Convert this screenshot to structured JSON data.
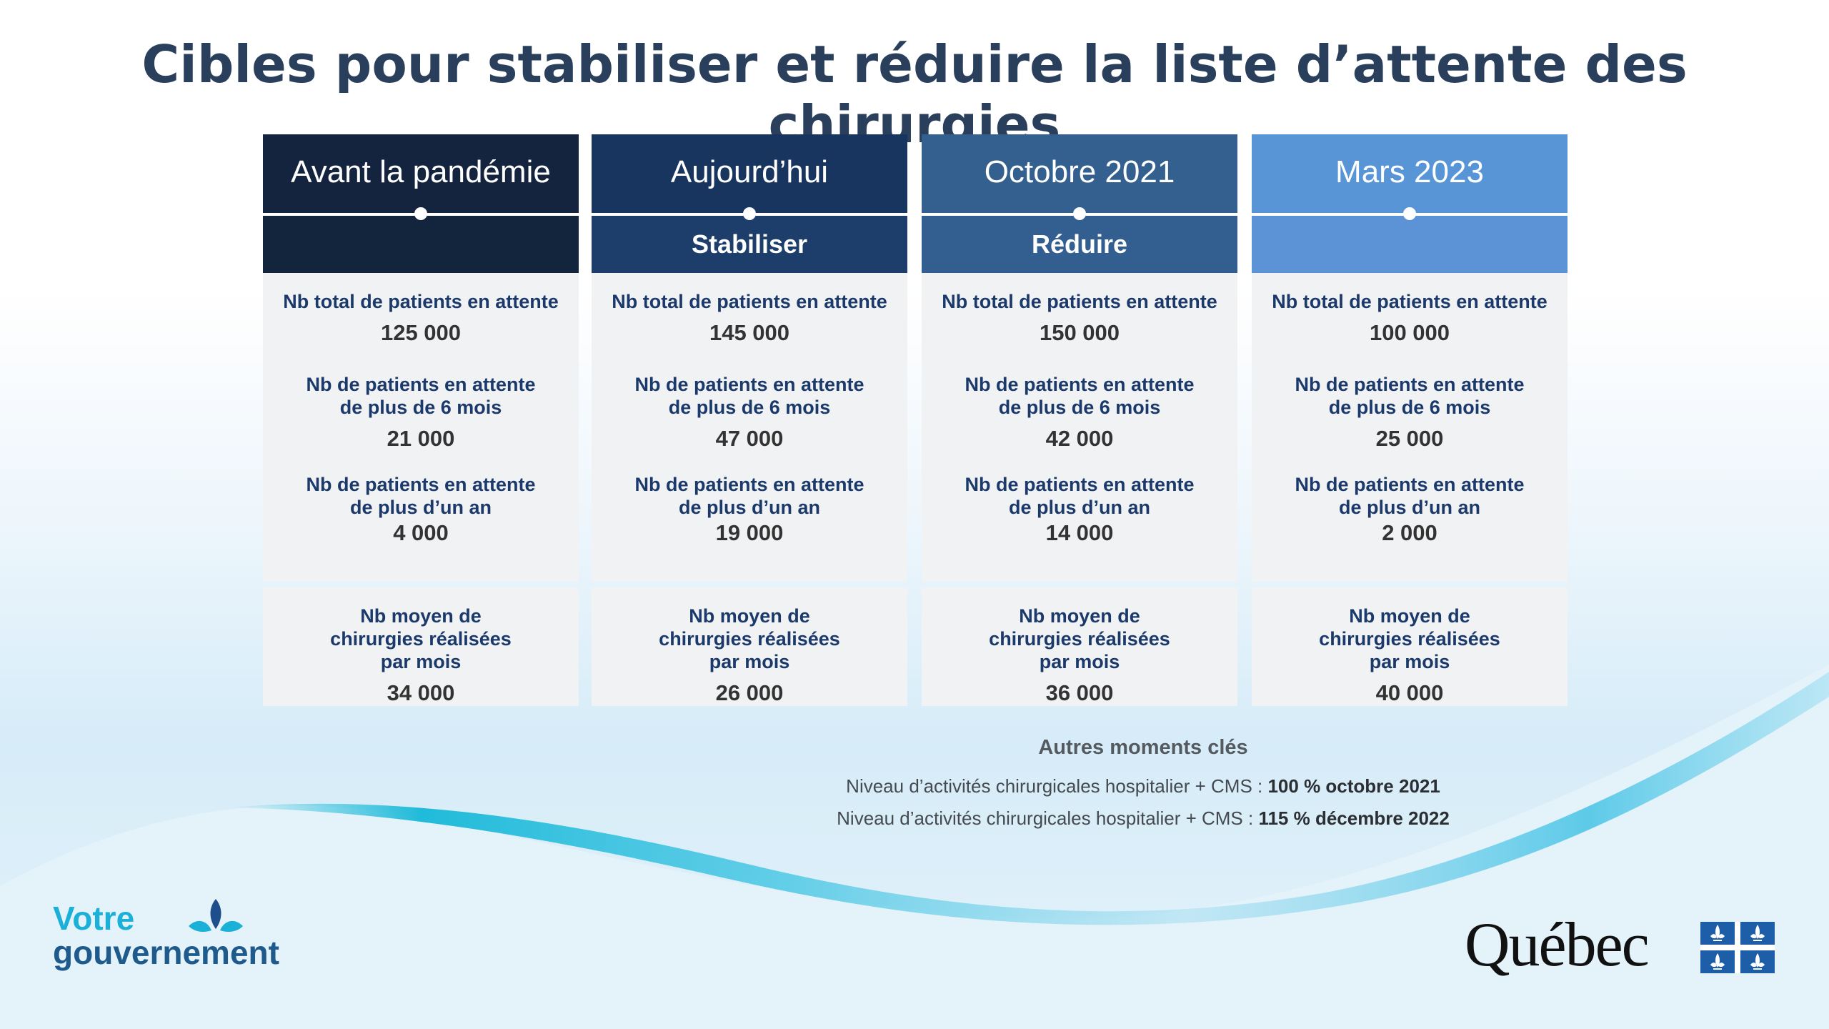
{
  "title": "Cibles pour stabiliser et réduire la liste d’attente des chirurgies",
  "colors": {
    "col1_head": "#15243e",
    "col1_sub": "#13243d",
    "col2_head": "#18355f",
    "col2_sub": "#1d3d6b",
    "col3_head": "#34608f",
    "col3_sub": "#335e90",
    "col4_head": "#5895d6",
    "col4_sub": "#5b93d6"
  },
  "columns": [
    {
      "header": "Avant la pandémie",
      "subheader": "",
      "metrics": [
        {
          "label": "Nb total de patients en attente",
          "value": "125 000"
        },
        {
          "label": "Nb de patients en attente de plus de 6 mois",
          "value": "21 000"
        },
        {
          "label": "Nb de patients en attente de plus d’un an",
          "value": "4 000"
        }
      ],
      "footer": {
        "label": "Nb moyen de chirurgies réalisées par mois",
        "value": "34 000"
      }
    },
    {
      "header": "Aujourd’hui",
      "subheader": "Stabiliser",
      "metrics": [
        {
          "label": "Nb total de patients en attente",
          "value": "145 000"
        },
        {
          "label": "Nb de patients en attente de plus de 6 mois",
          "value": "47 000"
        },
        {
          "label": "Nb de patients en attente de plus d’un an",
          "value": "19 000"
        }
      ],
      "footer": {
        "label": "Nb moyen de chirurgies réalisées par mois",
        "value": "26 000"
      }
    },
    {
      "header": "Octobre 2021",
      "subheader": "Réduire",
      "metrics": [
        {
          "label": "Nb total de patients en attente",
          "value": "150 000"
        },
        {
          "label": "Nb de patients en attente de plus de 6 mois",
          "value": "42 000"
        },
        {
          "label": "Nb de patients en attente de plus d’un an",
          "value": "14 000"
        }
      ],
      "footer": {
        "label": "Nb moyen de chirurgies réalisées par mois",
        "value": "36 000"
      }
    },
    {
      "header": "Mars 2023",
      "subheader": "",
      "metrics": [
        {
          "label": "Nb total de patients en attente",
          "value": "100 000"
        },
        {
          "label": "Nb de patients en attente de plus de 6 mois",
          "value": "25 000"
        },
        {
          "label": "Nb de patients en attente de plus d’un an",
          "value": "2 000"
        }
      ],
      "footer": {
        "label": "Nb moyen de chirurgies réalisées par mois",
        "value": "40 000"
      }
    }
  ],
  "key_moments": {
    "title": "Autres moments clés",
    "lines": [
      {
        "text": "Niveau d’activités chirurgicales hospitalier + CMS : ",
        "bold": "100 % octobre 2021"
      },
      {
        "text": "Niveau d’activités chirurgicales hospitalier + CMS : ",
        "bold": "115 % décembre 2022"
      }
    ]
  },
  "logo_left": {
    "line1": "Votre",
    "line2": "gouvernement",
    "icon": "fleur-de-lis-icon"
  },
  "logo_right": {
    "word": "Québec",
    "icon": "quebec-flag-icon"
  }
}
